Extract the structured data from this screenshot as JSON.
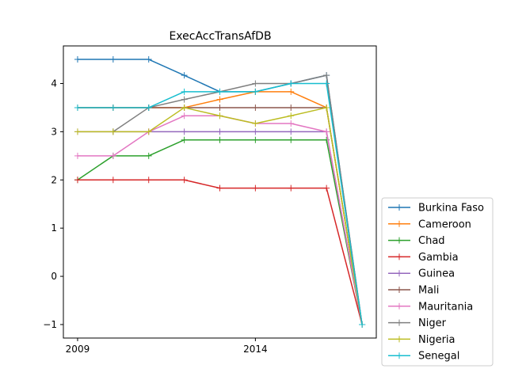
{
  "chart_data": {
    "type": "line",
    "title": "ExecAccTransAfDB",
    "xlabel": "",
    "ylabel": "",
    "x": [
      2009,
      2010,
      2011,
      2012,
      2013,
      2014,
      2015,
      2016,
      2017
    ],
    "xticks": [
      2009,
      2014
    ],
    "xtick_labels": [
      "2009",
      "2014"
    ],
    "yticks": [
      -1,
      0,
      1,
      2,
      3,
      4
    ],
    "ytick_labels": [
      "−1",
      "0",
      "1",
      "2",
      "3",
      "4"
    ],
    "xlim": [
      2008.6,
      2017.4
    ],
    "ylim": [
      -1.28,
      4.78
    ],
    "grid": false,
    "legend_position": "lower-right-outside",
    "series": [
      {
        "name": "Burkina Faso",
        "color": "#1f77b4",
        "values": [
          4.5,
          4.5,
          4.5,
          4.17,
          3.83,
          3.83,
          4.0,
          4.17,
          -1.0
        ]
      },
      {
        "name": "Cameroon",
        "color": "#ff7f0e",
        "values": [
          3.5,
          3.5,
          3.5,
          3.5,
          3.67,
          3.83,
          3.83,
          3.5,
          -1.0
        ]
      },
      {
        "name": "Chad",
        "color": "#2ca02c",
        "values": [
          2.0,
          2.5,
          2.5,
          2.83,
          2.83,
          2.83,
          2.83,
          2.83,
          -1.0
        ]
      },
      {
        "name": "Gambia",
        "color": "#d62728",
        "values": [
          2.0,
          2.0,
          2.0,
          2.0,
          1.83,
          1.83,
          1.83,
          1.83,
          -1.0
        ]
      },
      {
        "name": "Guinea",
        "color": "#9467bd",
        "values": [
          3.0,
          3.0,
          3.0,
          3.0,
          3.0,
          3.0,
          3.0,
          3.0,
          -1.0
        ]
      },
      {
        "name": "Mali",
        "color": "#8c564b",
        "values": [
          3.5,
          3.5,
          3.5,
          3.5,
          3.5,
          3.5,
          3.5,
          3.5,
          -1.0
        ]
      },
      {
        "name": "Mauritania",
        "color": "#e377c2",
        "values": [
          2.5,
          2.5,
          3.0,
          3.33,
          3.33,
          3.17,
          3.17,
          3.0,
          -1.0
        ]
      },
      {
        "name": "Niger",
        "color": "#7f7f7f",
        "values": [
          null,
          3.0,
          3.5,
          3.67,
          3.83,
          4.0,
          4.0,
          4.17,
          -1.0
        ]
      },
      {
        "name": "Nigeria",
        "color": "#bcbd22",
        "values": [
          3.0,
          3.0,
          3.0,
          3.5,
          3.33,
          3.17,
          3.33,
          3.5,
          -1.0
        ]
      },
      {
        "name": "Senegal",
        "color": "#17becf",
        "values": [
          3.5,
          3.5,
          3.5,
          3.83,
          3.83,
          3.83,
          4.0,
          4.0,
          -1.0
        ]
      }
    ]
  }
}
